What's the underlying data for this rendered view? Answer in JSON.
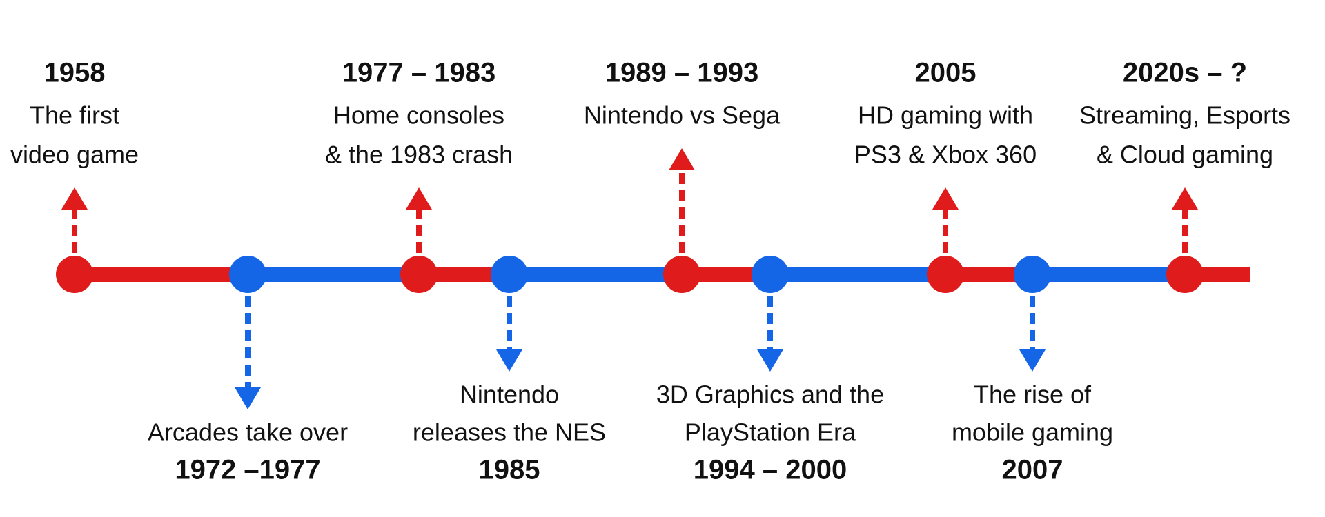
{
  "timeline": {
    "events": [
      {
        "date": "1958",
        "lines": [
          "The first",
          "video game"
        ]
      },
      {
        "date": "1972 –1977",
        "lines": [
          "Arcades take over"
        ]
      },
      {
        "date": "1977 – 1983",
        "lines": [
          "Home consoles",
          "& the 1983 crash"
        ]
      },
      {
        "date": "1985",
        "lines": [
          "Nintendo",
          "releases the NES"
        ]
      },
      {
        "date": "1989 – 1993",
        "lines": [
          "Nintendo vs Sega"
        ]
      },
      {
        "date": "1994 – 2000",
        "lines": [
          "3D Graphics and the",
          "PlayStation Era"
        ]
      },
      {
        "date": "2005",
        "lines": [
          "HD gaming with",
          "PS3 & Xbox 360"
        ]
      },
      {
        "date": "2007",
        "lines": [
          "The rise of",
          "mobile gaming"
        ]
      },
      {
        "date": "2020s – ?",
        "lines": [
          "Streaming, Esports",
          "& Cloud gaming"
        ]
      }
    ]
  }
}
